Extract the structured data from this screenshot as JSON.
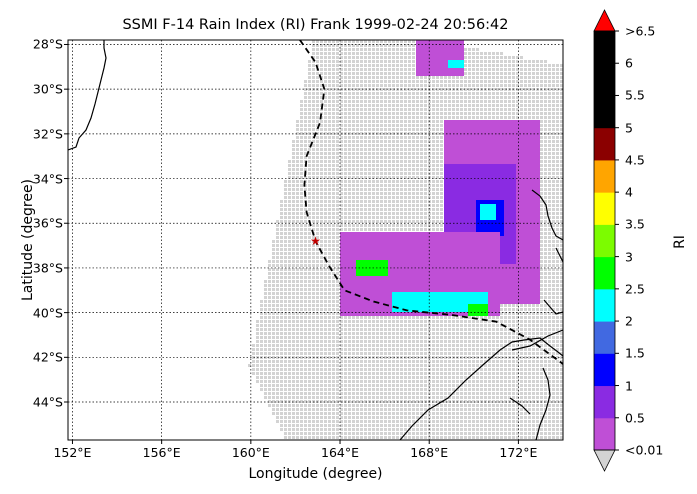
{
  "title": "SSMI F-14 Rain Index (RI) Frank 1999-02-24 20:56:42",
  "xlabel": "Longitude (degree)",
  "ylabel": "Latitude (degree)",
  "colorbar_label": "RI",
  "x_ticks": [
    "152°E",
    "156°E",
    "160°E",
    "164°E",
    "168°E",
    "172°E"
  ],
  "y_ticks": [
    "28°S",
    "30°S",
    "32°S",
    "34°S",
    "36°S",
    "38°S",
    "40°S",
    "42°S",
    "44°S"
  ],
  "colorbar_ticks": [
    "<0.01",
    "0.5",
    "1",
    "1.5",
    "2",
    "2.5",
    "3",
    "3.5",
    "4",
    "4.5",
    "5",
    "5.5",
    "6",
    ">6.5"
  ],
  "colors": {
    "background_pixel": "#d3d3d3",
    "track": "#000000",
    "storm_marker": "#c00000",
    "colorbar": [
      "#bf4fd6",
      "#8a2be2",
      "#0000ff",
      "#4169e1",
      "#00ffff",
      "#00ff00",
      "#7cfc00",
      "#ffff00",
      "#ffa500",
      "#8b0000",
      "#000000",
      "#000000",
      "#000000"
    ],
    "cb_over": "#ff0000",
    "cb_under": "#d3d3d3"
  },
  "chart_data": {
    "type": "heatmap",
    "projection": "lon-lat map",
    "xlim": [
      151.8,
      174.0
    ],
    "ylim": [
      -45.7,
      -27.8
    ],
    "grid": true,
    "colorbar_levels": [
      0.01,
      0.5,
      1,
      1.5,
      2,
      2.5,
      3,
      3.5,
      4,
      4.5,
      5,
      5.5,
      6,
      6.5
    ],
    "storm_center": {
      "lon": 162.9,
      "lat": -36.8
    },
    "storm_track": [
      {
        "lon": 162.2,
        "lat": -27.8
      },
      {
        "lon": 162.9,
        "lat": -28.8
      },
      {
        "lon": 163.3,
        "lat": -30.0
      },
      {
        "lon": 163.1,
        "lat": -31.5
      },
      {
        "lon": 162.5,
        "lat": -33.0
      },
      {
        "lon": 162.4,
        "lat": -34.3
      },
      {
        "lon": 162.5,
        "lat": -35.5
      },
      {
        "lon": 162.9,
        "lat": -36.8
      },
      {
        "lon": 163.5,
        "lat": -37.9
      },
      {
        "lon": 164.2,
        "lat": -39.0
      },
      {
        "lon": 165.5,
        "lat": -39.5
      },
      {
        "lon": 167.0,
        "lat": -39.9
      },
      {
        "lon": 169.0,
        "lat": -40.1
      },
      {
        "lon": 171.0,
        "lat": -40.4
      },
      {
        "lon": 172.5,
        "lat": -41.2
      },
      {
        "lon": 174.0,
        "lat": -42.3
      }
    ],
    "swath_outline": [
      {
        "lon": 162.8,
        "lat": -27.8
      },
      {
        "lon": 168.0,
        "lat": -27.8
      },
      {
        "lon": 174.0,
        "lat": -28.9
      },
      {
        "lon": 174.0,
        "lat": -45.7
      },
      {
        "lon": 161.6,
        "lat": -45.7
      },
      {
        "lon": 159.9,
        "lat": -42.4
      }
    ],
    "rain_regions": [
      {
        "level": 0.3,
        "lon_range": [
          168.8,
          172.8
        ],
        "lat_range": [
          -39.5,
          -31.5
        ]
      },
      {
        "level": 0.7,
        "lon_range": [
          168.8,
          171.8
        ],
        "lat_range": [
          -37.8,
          -33.5
        ]
      },
      {
        "level": 1.2,
        "lon_range": [
          170.1,
          171.3
        ],
        "lat_range": [
          -36.5,
          -35.0
        ]
      },
      {
        "level": 2.2,
        "lon_range": [
          170.3,
          170.9
        ],
        "lat_range": [
          -35.7,
          -35.2
        ]
      },
      {
        "level": 0.3,
        "lon_range": [
          164.0,
          171.0
        ],
        "lat_range": [
          -40.0,
          -36.5
        ]
      },
      {
        "level": 2.7,
        "lon_range": [
          164.8,
          166.0
        ],
        "lat_range": [
          -38.3,
          -37.8
        ]
      },
      {
        "level": 2.2,
        "lon_range": [
          166.5,
          170.5
        ],
        "lat_range": [
          -39.9,
          -39.2
        ]
      },
      {
        "level": 2.7,
        "lon_range": [
          169.8,
          170.5
        ],
        "lat_range": [
          -40.0,
          -39.7
        ]
      },
      {
        "level": 0.3,
        "lon_range": [
          167.5,
          169.5
        ],
        "lat_range": [
          -29.3,
          -27.8
        ]
      },
      {
        "level": 2.2,
        "lon_range": [
          168.9,
          169.4
        ],
        "lat_range": [
          -29.0,
          -28.7
        ]
      }
    ]
  }
}
